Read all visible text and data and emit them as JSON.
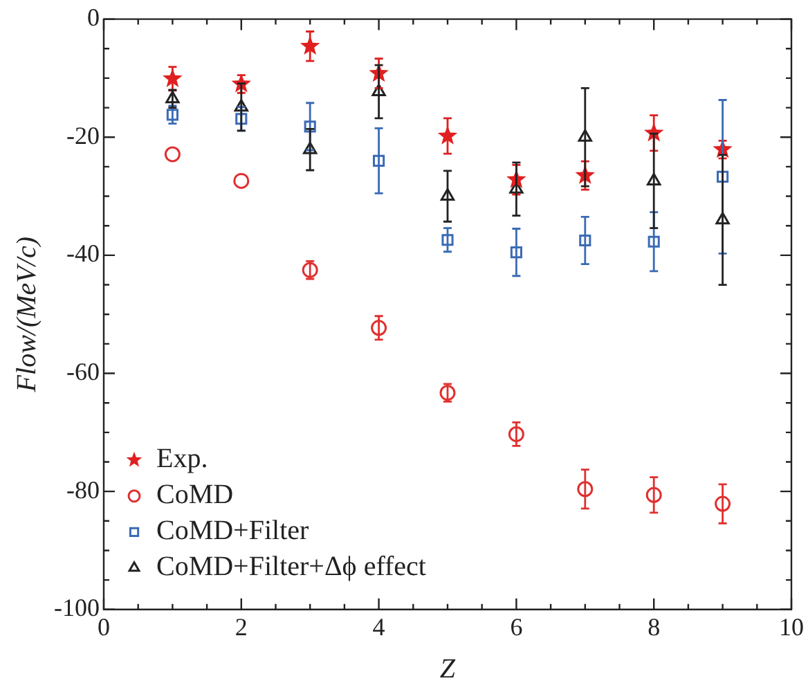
{
  "chart_data": {
    "type": "scatter",
    "xlabel": "Z",
    "ylabel": "Flow/(MeV/c)",
    "x": [
      1,
      2,
      3,
      4,
      5,
      6,
      7,
      8,
      9
    ],
    "xlim": [
      0,
      10
    ],
    "ylim": [
      -100,
      0
    ],
    "xticks": [
      0,
      {
        "value": 0.5,
        "label": null
      },
      {
        "value": 1,
        "label": null
      },
      {
        "value": 1.5,
        "label": null
      },
      2,
      {
        "value": 2.5,
        "label": null
      },
      {
        "value": 3,
        "label": null
      },
      {
        "value": 3.5,
        "label": null
      },
      4,
      {
        "value": 4.5,
        "label": null
      },
      {
        "value": 5,
        "label": null
      },
      {
        "value": 5.5,
        "label": null
      },
      6,
      {
        "value": 6.5,
        "label": null
      },
      {
        "value": 7,
        "label": null
      },
      {
        "value": 7.5,
        "label": null
      },
      8,
      {
        "value": 8.5,
        "label": null
      },
      {
        "value": 9,
        "label": null
      },
      {
        "value": 9.5,
        "label": null
      },
      10
    ],
    "yticks": [
      -100,
      {
        "value": -95,
        "label": null
      },
      {
        "value": -90,
        "label": null
      },
      {
        "value": -85,
        "label": null
      },
      -80,
      {
        "value": -75,
        "label": null
      },
      {
        "value": -70,
        "label": null
      },
      {
        "value": -65,
        "label": null
      },
      -60,
      {
        "value": -55,
        "label": null
      },
      {
        "value": -50,
        "label": null
      },
      {
        "value": -45,
        "label": null
      },
      -40,
      {
        "value": -35,
        "label": null
      },
      {
        "value": -30,
        "label": null
      },
      {
        "value": -25,
        "label": null
      },
      -20,
      {
        "value": -15,
        "label": null
      },
      {
        "value": -10,
        "label": null
      },
      {
        "value": -5,
        "label": null
      },
      0
    ],
    "grid": false,
    "legend": "bottom left",
    "series": [
      {
        "name": "Exp.",
        "color": "#e02020",
        "marker": "star",
        "values": [
          -10.1,
          -11,
          -4.6,
          -9.2,
          -19.8,
          -27.2,
          -26.5,
          -19.3,
          -22.1
        ],
        "errors": [
          2,
          1.5,
          2.5,
          2.5,
          3,
          2.5,
          2.4,
          3,
          1.5
        ]
      },
      {
        "name": "CoMD",
        "color": "#e03030",
        "marker": "circle",
        "values": [
          -22.9,
          -27.4,
          -42.5,
          -52.3,
          -63.3,
          -70.3,
          -79.6,
          -80.6,
          -82.1
        ],
        "errors": [
          null,
          null,
          1.5,
          2,
          1.5,
          2,
          3.3,
          3,
          3.3
        ]
      },
      {
        "name": "CoMD+Filter",
        "color": "#3a6bb5",
        "marker": "square",
        "values": [
          -16.2,
          -16.9,
          -18.2,
          -24,
          -37.4,
          -39.5,
          -37.5,
          -37.7,
          -26.7
        ],
        "errors": [
          1.5,
          2,
          4,
          5.5,
          2,
          4,
          4,
          5,
          13
        ]
      },
      {
        "name": "CoMD+Filter+Δϕ effect",
        "color": "#222222",
        "marker": "triangle",
        "values": [
          -13.5,
          -14.9,
          -22.1,
          -12.3,
          -30,
          -28.8,
          -20,
          -27.4,
          -34
        ],
        "errors": [
          1.5,
          4,
          3.5,
          4.5,
          4.3,
          4.5,
          8.3,
          8,
          11
        ]
      }
    ]
  }
}
